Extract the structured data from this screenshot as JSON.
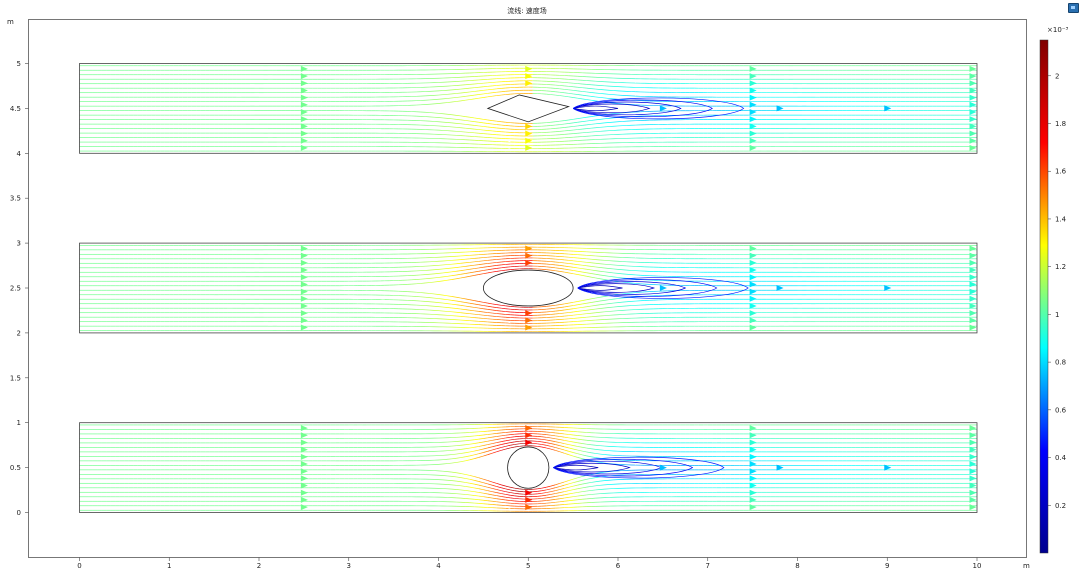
{
  "toolbar": {
    "export_icon": "image-export-icon"
  },
  "chart_data": {
    "type": "streamline",
    "title": "流线: 速度场",
    "xlabel": "m",
    "ylabel": "m",
    "xlim": [
      -0.55,
      10.55
    ],
    "ylim": [
      -0.5,
      5.7
    ],
    "x_ticks": [
      0,
      1,
      2,
      3,
      4,
      5,
      6,
      7,
      8,
      9,
      10
    ],
    "y_ticks": [
      0,
      0.5,
      1,
      1.5,
      2,
      2.5,
      3,
      3.5,
      4,
      4.5,
      5
    ],
    "colorbar": {
      "label": "×10⁻³",
      "range": [
        0.0,
        2.15
      ],
      "ticks": [
        0.2,
        0.4,
        0.6,
        0.8,
        1,
        1.2,
        1.4,
        1.6,
        1.8,
        2
      ],
      "colormap": "rainbow",
      "colors": [
        "#00008f",
        "#0000ff",
        "#00ffff",
        "#ffff00",
        "#ff0000",
        "#800000"
      ]
    },
    "channels": [
      {
        "name": "diamond",
        "x": [
          0,
          10
        ],
        "y": [
          0,
          1
        ],
        "offset": 4,
        "obstacle": {
          "shape": "diamond",
          "cx": 5,
          "cy": 0.5,
          "rx": 0.45,
          "ry": 0.15
        },
        "tip_speed": 1.45,
        "arrow_inlet": 1.05
      },
      {
        "name": "ellipse",
        "x": [
          0,
          10
        ],
        "y": [
          0,
          1
        ],
        "offset": 2,
        "obstacle": {
          "shape": "ellipse",
          "cx": 5,
          "cy": 0.5,
          "rx": 0.5,
          "ry": 0.2
        },
        "tip_speed": 1.9,
        "arrow_inlet": 1.05
      },
      {
        "name": "circle",
        "x": [
          0,
          10
        ],
        "y": [
          0,
          1
        ],
        "offset": 0,
        "obstacle": {
          "shape": "circle",
          "cx": 5,
          "cy": 0.5,
          "rx": 0.23,
          "ry": 0.23
        },
        "tip_speed": 2.1,
        "arrow_inlet": 1.05
      }
    ]
  }
}
